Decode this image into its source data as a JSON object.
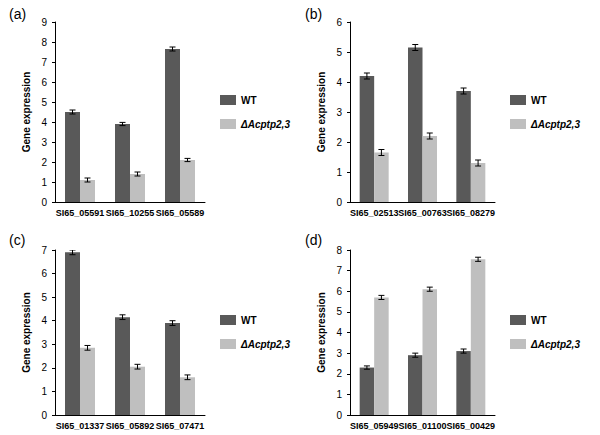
{
  "chart_data": [
    {
      "type": "bar",
      "title": "(a)",
      "ylabel": "Gene expression",
      "categories": [
        "SI65_05591",
        "SI65_10255",
        "SI65_05589"
      ],
      "series": [
        {
          "name": "WT",
          "color": "#595959",
          "values": [
            4.5,
            3.9,
            7.65
          ],
          "errors": [
            0.1,
            0.08,
            0.1
          ]
        },
        {
          "name": "ΔAcptp2,3",
          "color": "#bfbfbf",
          "values": [
            1.1,
            1.4,
            2.1
          ],
          "errors": [
            0.1,
            0.1,
            0.08
          ]
        }
      ],
      "ylim": [
        0,
        9
      ],
      "yticks": [
        0,
        1,
        2,
        3,
        4,
        5,
        6,
        7,
        8,
        9
      ],
      "grid": false,
      "legend": "right"
    },
    {
      "type": "bar",
      "title": "(b)",
      "ylabel": "Gene expression",
      "categories": [
        "SI65_02513",
        "SI65_00763",
        "SI65_08279"
      ],
      "series": [
        {
          "name": "WT",
          "color": "#595959",
          "values": [
            4.2,
            5.15,
            3.7
          ],
          "errors": [
            0.1,
            0.1,
            0.1
          ]
        },
        {
          "name": "ΔAcptp2,3",
          "color": "#bfbfbf",
          "values": [
            1.65,
            2.2,
            1.3
          ],
          "errors": [
            0.1,
            0.1,
            0.1
          ]
        }
      ],
      "ylim": [
        0,
        6
      ],
      "yticks": [
        0,
        1,
        2,
        3,
        4,
        5,
        6
      ],
      "grid": false,
      "legend": "right"
    },
    {
      "type": "bar",
      "title": "(c)",
      "ylabel": "Gene expression",
      "categories": [
        "SI65_01337",
        "SI65_05892",
        "SI65_07471"
      ],
      "series": [
        {
          "name": "WT",
          "color": "#595959",
          "values": [
            6.9,
            4.15,
            3.9
          ],
          "errors": [
            0.1,
            0.1,
            0.1
          ]
        },
        {
          "name": "ΔAcptp2,3",
          "color": "#bfbfbf",
          "values": [
            2.85,
            2.05,
            1.6
          ],
          "errors": [
            0.1,
            0.1,
            0.1
          ]
        }
      ],
      "ylim": [
        0,
        7
      ],
      "yticks": [
        0,
        1,
        2,
        3,
        4,
        5,
        6,
        7
      ],
      "grid": false,
      "legend": "right"
    },
    {
      "type": "bar",
      "title": "(d)",
      "ylabel": "Gene expression",
      "categories": [
        "SI65_05949",
        "SI65_01100",
        "SI65_00429"
      ],
      "series": [
        {
          "name": "WT",
          "color": "#595959",
          "values": [
            2.3,
            2.9,
            3.1
          ],
          "errors": [
            0.08,
            0.1,
            0.1
          ]
        },
        {
          "name": "ΔAcptp2,3",
          "color": "#bfbfbf",
          "values": [
            5.7,
            6.1,
            7.55
          ],
          "errors": [
            0.1,
            0.1,
            0.1
          ]
        }
      ],
      "ylim": [
        0,
        8
      ],
      "yticks": [
        0,
        1,
        2,
        3,
        4,
        5,
        6,
        7,
        8
      ],
      "grid": false,
      "legend": "right"
    }
  ]
}
